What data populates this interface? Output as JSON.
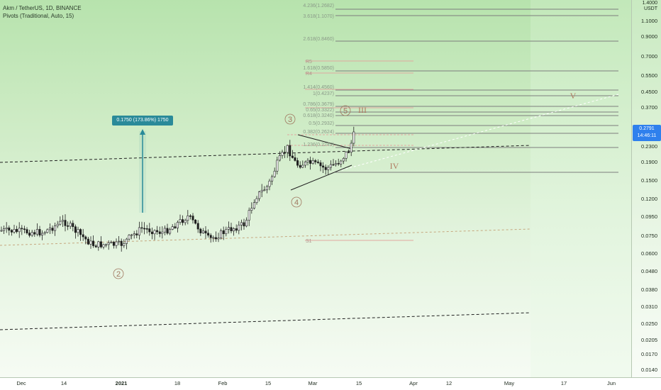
{
  "legend": {
    "symbol": "Akm / TetherUS, 1D, BINANCE",
    "indicator": "Pivots (Traditional, Auto, 15)"
  },
  "price_axis": {
    "currency_top": "1.4000",
    "currency": "USDT",
    "ticks": [
      "1.1000",
      "0.9000",
      "0.7000",
      "0.5500",
      "0.4500",
      "0.3700",
      "0.2300",
      "0.1900",
      "0.1500",
      "0.1200",
      "0.0950",
      "0.0750",
      "0.0600",
      "0.0480",
      "0.0380",
      "0.0310",
      "0.0250",
      "0.0205",
      "0.0170",
      "0.0140"
    ],
    "last_price": "0.2791",
    "countdown": "14:46:11",
    "last_price_color": "#2f80ed"
  },
  "time_axis": {
    "ticks": [
      "Dec",
      "14",
      "2021",
      "18",
      "Feb",
      "15",
      "Mar",
      "15",
      "Apr",
      "12",
      "May",
      "17",
      "Jun"
    ]
  },
  "measure_tooltip": "0.1750 (173.86%) 1750",
  "fib_labels": [
    "4.236(1.2682)",
    "3.618(1.1070)",
    "2.618(0.8460)",
    "1.618(0.5850)",
    "1.414(0.4560)",
    "1(0.4237)",
    "0.786(0.3679)",
    "0.65(0.3322)",
    "0.618(0.3240)",
    "0.5(0.2932)",
    "0.382(0.2624)",
    "1.236(0.2243)"
  ],
  "pivot_labels": [
    "R5",
    "R4",
    "S1"
  ],
  "wave_labels": {
    "w2": "2",
    "w3": "3",
    "w4": "4",
    "w5": "5",
    "wIII": "III",
    "wIV": "IV",
    "wV": "V"
  },
  "colors": {
    "bull_candle": "#ffffff",
    "bear_candle": "#1f1f1f",
    "fib_line": "#7d7d7d",
    "pivot_line": "#e0a8a0",
    "channel_line": "#202020",
    "measure_tooltip": "#2a8a99",
    "wave_label": "#a07860"
  }
}
